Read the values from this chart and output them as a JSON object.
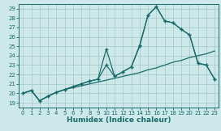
{
  "xlabel": "Humidex (Indice chaleur)",
  "bg_color": "#cce8e8",
  "grid_color": "#aacccc",
  "line_color": "#1a6b6b",
  "xlim": [
    -0.5,
    23.5
  ],
  "ylim": [
    18.5,
    29.5
  ],
  "xticks": [
    0,
    1,
    2,
    3,
    4,
    5,
    6,
    7,
    8,
    9,
    10,
    11,
    12,
    13,
    14,
    15,
    16,
    17,
    18,
    19,
    20,
    21,
    22,
    23
  ],
  "yticks": [
    19,
    20,
    21,
    22,
    23,
    24,
    25,
    26,
    27,
    28,
    29
  ],
  "line1_x": [
    0,
    1,
    2,
    3,
    4,
    5,
    6,
    7,
    8,
    9,
    10,
    11,
    12,
    13,
    14,
    15,
    16,
    17,
    18,
    19,
    20,
    21,
    22,
    23
  ],
  "line1_y": [
    20.0,
    20.3,
    19.2,
    19.7,
    20.1,
    20.4,
    20.6,
    20.8,
    21.0,
    21.2,
    21.4,
    21.6,
    21.8,
    22.0,
    22.2,
    22.5,
    22.7,
    23.0,
    23.3,
    23.5,
    23.8,
    24.0,
    24.2,
    24.5
  ],
  "line2_x": [
    0,
    1,
    2,
    3,
    4,
    5,
    6,
    7,
    8,
    9,
    10,
    11,
    12,
    13,
    14,
    15,
    16,
    17,
    18,
    19,
    20,
    21,
    22,
    23
  ],
  "line2_y": [
    20.0,
    20.3,
    19.2,
    19.7,
    20.1,
    20.4,
    20.7,
    21.0,
    21.3,
    21.5,
    24.7,
    21.8,
    22.3,
    22.8,
    25.1,
    28.3,
    29.2,
    27.7,
    27.5,
    26.8,
    26.2,
    23.2,
    23.0,
    21.5
  ],
  "line3_x": [
    0,
    1,
    2,
    3,
    4,
    5,
    6,
    7,
    8,
    9,
    10,
    11,
    12,
    13,
    14,
    15,
    16,
    17,
    18,
    19,
    20,
    21,
    22,
    23
  ],
  "line3_y": [
    20.0,
    20.3,
    19.2,
    19.7,
    20.1,
    20.4,
    20.7,
    21.0,
    21.3,
    21.5,
    23.0,
    21.8,
    22.3,
    22.8,
    25.0,
    28.3,
    29.2,
    27.7,
    27.5,
    26.8,
    26.2,
    23.2,
    23.0,
    21.5
  ]
}
